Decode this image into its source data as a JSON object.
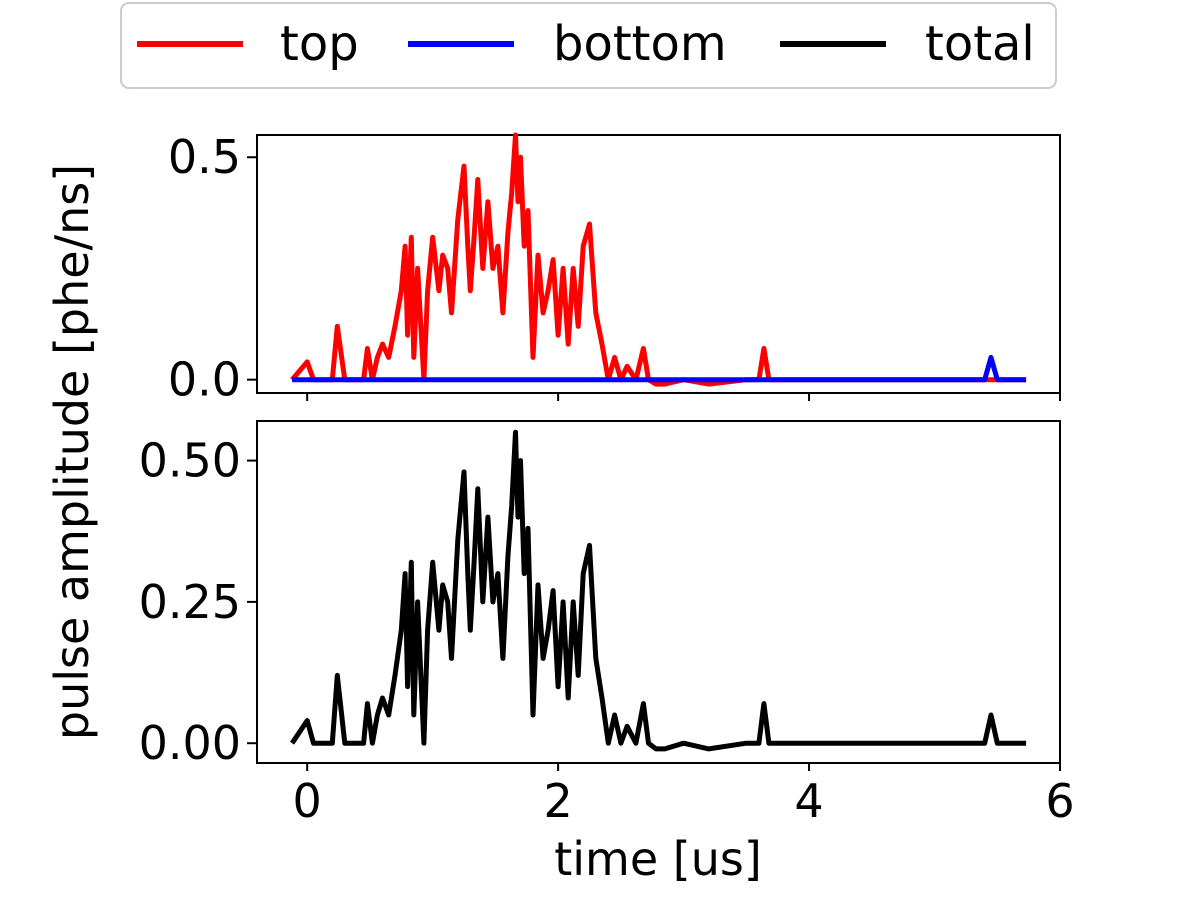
{
  "colors": {
    "top": "#ff0000",
    "bottom": "#0000ff",
    "total": "#000000"
  },
  "chart_data": {
    "type": "line",
    "legend": {
      "placement": "top-center, above plots",
      "entries": [
        "top",
        "bottom",
        "total"
      ]
    },
    "xlabel": "time [us]",
    "ylabel": "pulse amplitude [phe/ns]",
    "xlim": [
      -0.4,
      6.0
    ],
    "xticks": [
      "0",
      "2",
      "4",
      "6"
    ],
    "grid": false,
    "sharex": true,
    "x": [
      -0.12,
      0.0,
      0.05,
      0.1,
      0.2,
      0.24,
      0.3,
      0.45,
      0.48,
      0.52,
      0.56,
      0.6,
      0.65,
      0.7,
      0.75,
      0.78,
      0.8,
      0.83,
      0.85,
      0.88,
      0.9,
      0.93,
      0.96,
      1.0,
      1.05,
      1.08,
      1.12,
      1.15,
      1.2,
      1.25,
      1.28,
      1.3,
      1.33,
      1.36,
      1.4,
      1.44,
      1.48,
      1.52,
      1.56,
      1.6,
      1.63,
      1.66,
      1.68,
      1.7,
      1.73,
      1.76,
      1.8,
      1.84,
      1.88,
      1.92,
      1.96,
      2.0,
      2.04,
      2.08,
      2.12,
      2.16,
      2.2,
      2.25,
      2.3,
      2.35,
      2.4,
      2.45,
      2.5,
      2.55,
      2.62,
      2.68,
      2.72,
      2.78,
      2.85,
      3.0,
      3.2,
      3.5,
      3.6,
      3.64,
      3.68,
      3.75,
      3.9,
      4.2,
      5.0,
      5.4,
      5.45,
      5.5,
      5.6,
      5.73
    ],
    "panels": [
      {
        "yticks": [
          "0.0",
          "0.5"
        ],
        "ylim": [
          -0.03,
          0.55
        ],
        "series": [
          {
            "name": "top",
            "values": [
              0.0,
              0.04,
              0.0,
              0.0,
              0.0,
              0.12,
              0.0,
              0.0,
              0.07,
              0.0,
              0.05,
              0.08,
              0.05,
              0.12,
              0.2,
              0.3,
              0.1,
              0.32,
              0.05,
              0.25,
              0.15,
              0.0,
              0.2,
              0.32,
              0.2,
              0.28,
              0.25,
              0.15,
              0.36,
              0.48,
              0.3,
              0.2,
              0.32,
              0.45,
              0.25,
              0.4,
              0.25,
              0.3,
              0.15,
              0.33,
              0.42,
              0.55,
              0.4,
              0.5,
              0.3,
              0.38,
              0.05,
              0.28,
              0.15,
              0.2,
              0.27,
              0.1,
              0.25,
              0.08,
              0.25,
              0.12,
              0.3,
              0.35,
              0.15,
              0.08,
              0.0,
              0.05,
              0.0,
              0.03,
              0.0,
              0.07,
              0.0,
              -0.01,
              -0.01,
              0.0,
              -0.01,
              0.0,
              0.0,
              0.07,
              0.0,
              0.0,
              0.0,
              0.0,
              0.0,
              0.0,
              0.0,
              0.0,
              0.0,
              0.0
            ]
          },
          {
            "name": "bottom",
            "values": [
              0.0,
              0.0,
              0.0,
              0.0,
              0.0,
              0.0,
              0.0,
              0.0,
              0.0,
              0.0,
              0.0,
              0.0,
              0.0,
              0.0,
              0.0,
              0.0,
              0.0,
              0.0,
              0.0,
              0.0,
              0.0,
              0.0,
              0.0,
              0.0,
              0.0,
              0.0,
              0.0,
              0.0,
              0.0,
              0.0,
              0.0,
              0.0,
              0.0,
              0.0,
              0.0,
              0.0,
              0.0,
              0.0,
              0.0,
              0.0,
              0.0,
              0.0,
              0.0,
              0.0,
              0.0,
              0.0,
              0.0,
              0.0,
              0.0,
              0.0,
              0.0,
              0.0,
              0.0,
              0.0,
              0.0,
              0.0,
              0.0,
              0.0,
              0.0,
              0.0,
              0.0,
              0.0,
              0.0,
              0.0,
              0.0,
              0.0,
              0.0,
              0.0,
              0.0,
              0.0,
              0.0,
              0.0,
              0.0,
              0.0,
              0.0,
              0.0,
              0.0,
              0.0,
              0.0,
              0.0,
              0.05,
              0.0,
              0.0,
              0.0
            ]
          }
        ]
      },
      {
        "yticks": [
          "0.00",
          "0.25",
          "0.50"
        ],
        "ylim": [
          -0.035,
          0.57
        ],
        "series": [
          {
            "name": "total",
            "values": [
              0.0,
              0.04,
              0.0,
              0.0,
              0.0,
              0.12,
              0.0,
              0.0,
              0.07,
              0.0,
              0.05,
              0.08,
              0.05,
              0.12,
              0.2,
              0.3,
              0.1,
              0.32,
              0.05,
              0.25,
              0.15,
              0.0,
              0.2,
              0.32,
              0.2,
              0.28,
              0.25,
              0.15,
              0.36,
              0.48,
              0.3,
              0.2,
              0.32,
              0.45,
              0.25,
              0.4,
              0.25,
              0.3,
              0.15,
              0.33,
              0.42,
              0.55,
              0.4,
              0.5,
              0.3,
              0.38,
              0.05,
              0.28,
              0.15,
              0.2,
              0.27,
              0.1,
              0.25,
              0.08,
              0.25,
              0.12,
              0.3,
              0.35,
              0.15,
              0.08,
              0.0,
              0.05,
              0.0,
              0.03,
              0.0,
              0.07,
              0.0,
              -0.01,
              -0.01,
              0.0,
              -0.01,
              0.0,
              0.0,
              0.07,
              0.0,
              0.0,
              0.0,
              0.0,
              0.0,
              0.0,
              0.05,
              0.0,
              0.0,
              0.0
            ]
          }
        ]
      }
    ]
  }
}
